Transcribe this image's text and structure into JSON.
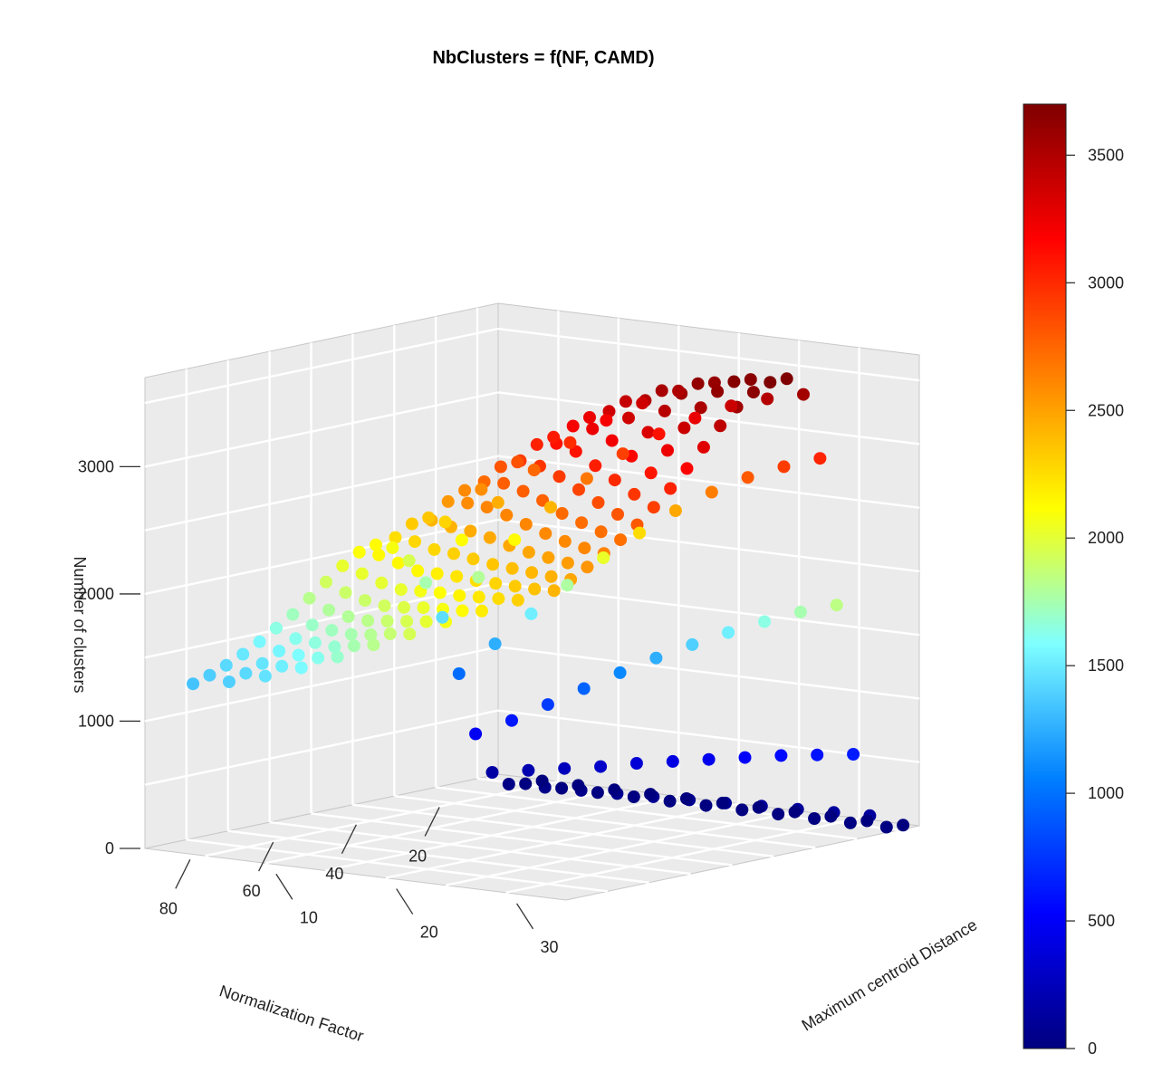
{
  "chart_data": {
    "type": "scatter",
    "title": "NbClusters = f(NF, CAMD)",
    "xlabel": "Normalization Factor",
    "ylabel": "Maximum centroid Distance",
    "zlabel": "Number of clusters",
    "x_ticks": [
      20,
      40,
      60,
      80
    ],
    "y_ticks": [
      10,
      20,
      30
    ],
    "z_ticks": [
      0,
      1000,
      2000,
      3000
    ],
    "xlim": [
      5,
      90
    ],
    "ylim": [
      0,
      35
    ],
    "zlim": [
      0,
      3700
    ],
    "colorbar": {
      "position": "right",
      "range": [
        0,
        3700
      ],
      "ticks": [
        0,
        500,
        1000,
        1500,
        2000,
        2500,
        3000,
        3500
      ],
      "colormap": [
        "#00007f",
        "#0000ff",
        "#007fff",
        "#7fffff",
        "#ffff00",
        "#ff7f00",
        "#ff0000",
        "#7f0000"
      ]
    },
    "pane_color": "#ebebeb",
    "grid_color": "#ffffff",
    "series": [
      {
        "y": 4,
        "x": [
          6,
          10,
          14,
          18,
          22,
          26,
          30,
          34,
          38,
          42,
          46,
          50,
          54,
          58,
          62,
          66,
          70,
          74,
          78,
          82,
          86,
          90
        ],
        "z": [
          0,
          5,
          30,
          150,
          480,
          980,
          1450,
          1750,
          1950,
          2080,
          2130,
          2100,
          2020,
          1920,
          1820,
          1720,
          1640,
          1560,
          1490,
          1430,
          1380,
          1340
        ]
      },
      {
        "y": 7,
        "x": [
          6,
          10,
          14,
          18,
          22,
          26,
          30,
          34,
          38,
          42,
          46,
          50,
          54,
          58,
          62,
          66,
          70,
          74,
          78,
          82,
          86,
          90
        ],
        "z": [
          0,
          5,
          40,
          200,
          620,
          1250,
          1800,
          2120,
          2290,
          2350,
          2330,
          2250,
          2140,
          2020,
          1900,
          1790,
          1700,
          1620,
          1550,
          1480,
          1430,
          1390
        ]
      },
      {
        "y": 10,
        "x": [
          6,
          10,
          14,
          18,
          22,
          26,
          30,
          34,
          38,
          42,
          46,
          50,
          54,
          58,
          62,
          66,
          70,
          74,
          78,
          82,
          86,
          90
        ],
        "z": [
          0,
          6,
          50,
          250,
          780,
          1520,
          2130,
          2450,
          2580,
          2600,
          2540,
          2420,
          2280,
          2140,
          2010,
          1900,
          1800,
          1720,
          1650,
          1580,
          1520,
          1470
        ]
      },
      {
        "y": 13,
        "x": [
          6,
          10,
          14,
          18,
          22,
          26,
          30,
          34,
          38,
          42,
          46,
          50,
          54,
          58,
          62,
          66,
          70,
          74,
          78,
          82,
          86,
          90
        ],
        "z": [
          0,
          7,
          60,
          300,
          940,
          1780,
          2420,
          2740,
          2830,
          2820,
          2730,
          2590,
          2430,
          2280,
          2140,
          2020,
          1920,
          1830,
          1750,
          1680,
          1620,
          1570
        ]
      },
      {
        "y": 16,
        "x": [
          6,
          10,
          14,
          18,
          22,
          26,
          30,
          34,
          38,
          42,
          46,
          50,
          54,
          58,
          62,
          66,
          70,
          74,
          78,
          82,
          86,
          90
        ],
        "z": [
          0,
          8,
          70,
          360,
          1100,
          2030,
          2680,
          2990,
          3060,
          3030,
          2930,
          2780,
          2620,
          2460,
          2310,
          2180,
          2070,
          1970,
          1890,
          1810,
          1750,
          1690
        ]
      },
      {
        "y": 19,
        "x": [
          6,
          10,
          14,
          18,
          22,
          26,
          30,
          34,
          38,
          42,
          46,
          50,
          54,
          58,
          62,
          66,
          70,
          74,
          78,
          82,
          86,
          90
        ],
        "z": [
          0,
          8,
          80,
          410,
          1250,
          2260,
          2910,
          3200,
          3250,
          3210,
          3100,
          2950,
          2780,
          2620,
          2470,
          2330,
          2220,
          2120,
          2030,
          1950,
          1880,
          1820
        ]
      },
      {
        "y": 22,
        "x": [
          6,
          10,
          14,
          18,
          22,
          26,
          30,
          34,
          38,
          42,
          46,
          50,
          54,
          58,
          62,
          66,
          70,
          74,
          78,
          82,
          86,
          90
        ],
        "z": [
          0,
          9,
          90,
          460,
          1390,
          2470,
          3100,
          3370,
          3410,
          3360,
          3250,
          3100,
          2930,
          2770,
          2610,
          2470,
          2350,
          2250,
          2160,
          2080,
          2010,
          1940
        ]
      },
      {
        "y": 25,
        "x": [
          6,
          10,
          14,
          18,
          22,
          26,
          30,
          34,
          38,
          42,
          46,
          50,
          54,
          58,
          62,
          66,
          70,
          74,
          78,
          82,
          86,
          90
        ],
        "z": [
          0,
          10,
          100,
          510,
          1520,
          2650,
          3260,
          3500,
          3530,
          3480,
          3370,
          3220,
          3050,
          2890,
          2730,
          2600,
          2480,
          2380,
          2290,
          2210,
          2130,
          2070
        ]
      },
      {
        "y": 28,
        "x": [
          6,
          10,
          14,
          18,
          22,
          26,
          30,
          34,
          38,
          42,
          46,
          50,
          54,
          58,
          62,
          66,
          70,
          74,
          78,
          82,
          86,
          90
        ],
        "z": [
          0,
          10,
          110,
          560,
          1640,
          2800,
          3390,
          3600,
          3620,
          3570,
          3460,
          3320,
          3160,
          3000,
          2850,
          2720,
          2600,
          2500,
          2410,
          2330,
          2260,
          2190
        ]
      },
      {
        "y": 31,
        "x": [
          6,
          10,
          14,
          18,
          22,
          26,
          30,
          34,
          38,
          42,
          46,
          50,
          54,
          58,
          62,
          66,
          70,
          74,
          78,
          82,
          86,
          90
        ],
        "z": [
          0,
          11,
          120,
          600,
          1750,
          2920,
          3480,
          3660,
          3670,
          3620,
          3520,
          3390,
          3240,
          3090,
          2950,
          2820,
          2710,
          2610,
          2520,
          2440,
          2370,
          2310
        ]
      },
      {
        "y": 34,
        "x": [
          6,
          10,
          14,
          18,
          22,
          26,
          30,
          34,
          38,
          42,
          46,
          50,
          54,
          58,
          62,
          66,
          70,
          74,
          78,
          82,
          86,
          90
        ],
        "z": [
          0,
          12,
          130,
          640,
          1840,
          3020,
          3550,
          3700,
          3700,
          3650,
          3560,
          3440,
          3300,
          3160,
          3030,
          2910,
          2800,
          2710,
          2630,
          2550,
          2480,
          2420
        ]
      }
    ]
  }
}
